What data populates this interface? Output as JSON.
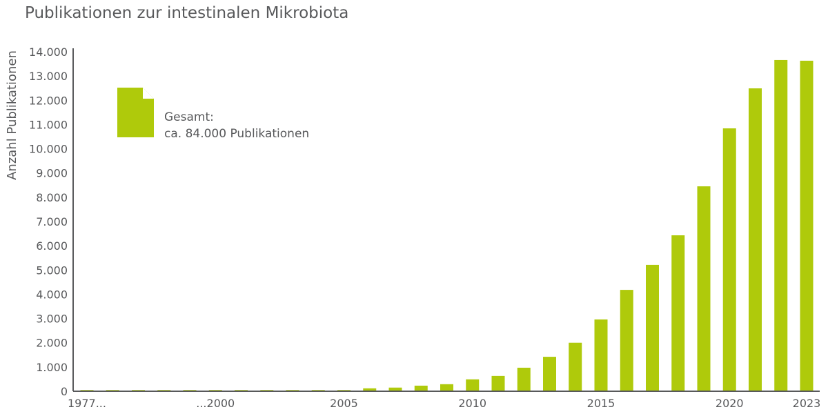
{
  "chart_data": {
    "type": "bar",
    "title": "Publikationen zur intestinalen Mikrobiota",
    "ylabel": "Anzahl Publikationen",
    "xlabel": "",
    "ylim": [
      0,
      14000
    ],
    "yticks": [
      "0",
      "1.000",
      "2.000",
      "3.000",
      "4.000",
      "5.000",
      "6.000",
      "7.000",
      "8.000",
      "9.000",
      "10.000",
      "11.000",
      "12.000",
      "13.000",
      "14.000"
    ],
    "xticks": [
      {
        "index": 0,
        "label": "1977..."
      },
      {
        "index": 5,
        "label": "...2000"
      },
      {
        "index": 10,
        "label": "2005"
      },
      {
        "index": 15,
        "label": "2010"
      },
      {
        "index": 20,
        "label": "2015"
      },
      {
        "index": 25,
        "label": "2020"
      },
      {
        "index": 28,
        "label": "2023"
      }
    ],
    "values": [
      50,
      50,
      50,
      50,
      50,
      50,
      50,
      50,
      50,
      50,
      50,
      120,
      150,
      230,
      290,
      490,
      630,
      970,
      1420,
      2000,
      2960,
      4180,
      5210,
      6430,
      8450,
      10840,
      12490,
      13660,
      13630
    ],
    "color": "#afca0b",
    "grid": false,
    "annotation": {
      "line1": "Gesamt:",
      "line2": "ca. 84.000 Publikationen",
      "icon": "document-icon"
    }
  }
}
